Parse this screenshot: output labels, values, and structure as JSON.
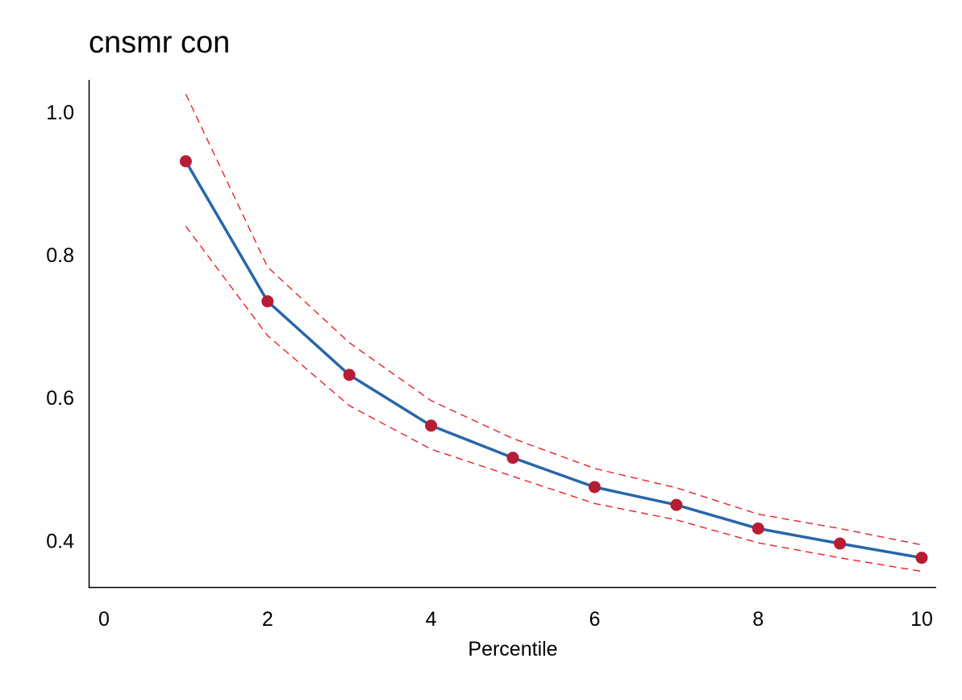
{
  "chart_data": {
    "type": "line",
    "title": "cnsmr con",
    "xlabel": "Percentile",
    "ylabel": "",
    "xlim": [
      0,
      10
    ],
    "ylim": [
      0.335,
      1.045
    ],
    "x_ticks": [
      0,
      2,
      4,
      6,
      8,
      10
    ],
    "x_tick_labels": [
      "0",
      "2",
      "4",
      "6",
      "8",
      "10"
    ],
    "y_ticks": [
      0.4,
      0.6,
      0.8,
      1.0
    ],
    "y_tick_labels": [
      "0.4",
      "0.6",
      "0.8",
      "1.0"
    ],
    "grid": false,
    "legend": "none",
    "series": [
      {
        "role": "estimate",
        "x": [
          1,
          2,
          3,
          4,
          5,
          6,
          7,
          8,
          9,
          10
        ],
        "y": [
          0.931,
          0.735,
          0.632,
          0.561,
          0.516,
          0.475,
          0.45,
          0.417,
          0.396,
          0.376
        ],
        "line_color": "#2866ab",
        "marker_color": "#b71c33"
      },
      {
        "role": "upper-bound",
        "x": [
          1,
          2,
          3,
          4,
          5,
          6,
          7,
          8,
          9,
          10
        ],
        "y": [
          1.025,
          0.783,
          0.677,
          0.596,
          0.543,
          0.501,
          0.474,
          0.437,
          0.417,
          0.394
        ],
        "line_color": "#e8202a",
        "dashed": true
      },
      {
        "role": "lower-bound",
        "x": [
          1,
          2,
          3,
          4,
          5,
          6,
          7,
          8,
          9,
          10
        ],
        "y": [
          0.84,
          0.687,
          0.589,
          0.528,
          0.49,
          0.452,
          0.429,
          0.397,
          0.376,
          0.357
        ],
        "line_color": "#e8202a",
        "dashed": true
      }
    ]
  }
}
